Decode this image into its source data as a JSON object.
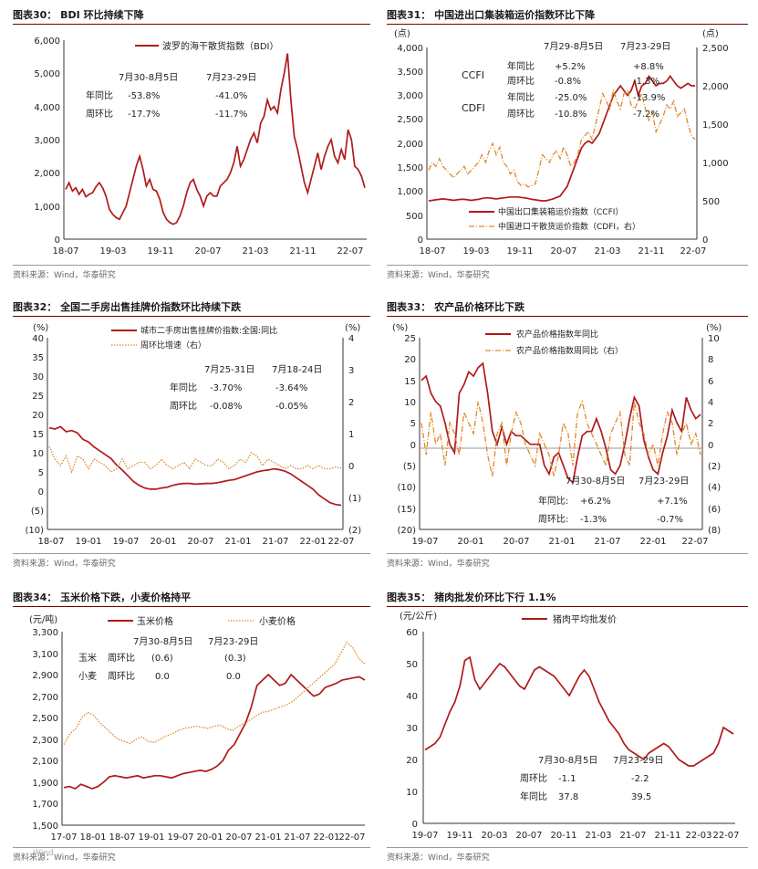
{
  "colors": {
    "primary": "#b01a1a",
    "secondary": "#e0892b",
    "axis": "#333333",
    "title_rule": "#7a0000",
    "source": "#666666"
  },
  "footer_note": "Wind",
  "chart_data": [
    {
      "id": "bdi",
      "type": "line",
      "title": "图表30： BDI 环比持续下降",
      "source": "资料来源：Wind，华泰研究",
      "left_unit": "",
      "y_ticks": [
        "6,000",
        "5,000",
        "4,000",
        "3,000",
        "2,000",
        "1,000",
        "0"
      ],
      "ylim": [
        0,
        6000
      ],
      "x_ticks": [
        "18-07",
        "19-03",
        "19-11",
        "20-07",
        "21-03",
        "21-11",
        "22-07"
      ],
      "x_range": [
        0,
        48
      ],
      "series": [
        {
          "name": "波罗的海干散货指数（BDI）",
          "style": "solid",
          "axis": "left",
          "values": [
            1500,
            1700,
            1450,
            1550,
            1350,
            1500,
            1280,
            1350,
            1400,
            1580,
            1700,
            1550,
            1300,
            900,
            750,
            650,
            600,
            800,
            1000,
            1400,
            1800,
            2200,
            2500,
            2100,
            1600,
            1800,
            1500,
            1450,
            1200,
            800,
            600,
            500,
            450,
            500,
            700,
            1000,
            1400,
            1700,
            1800,
            1500,
            1300,
            1000,
            1300,
            1400,
            1300,
            1300,
            1600,
            1700,
            1800,
            2000,
            2300,
            2800,
            2200,
            2400,
            2700,
            3000,
            3200,
            2900,
            3500,
            3700,
            4200,
            3900,
            4000,
            3800,
            4500,
            5000,
            5600,
            4200,
            3100,
            2700,
            2200,
            1700,
            1400,
            1800,
            2200,
            2600,
            2100,
            2500,
            2800,
            3000,
            2500,
            2300,
            2700,
            2400,
            3300,
            3000,
            2200,
            2100,
            1900,
            1550
          ]
        }
      ],
      "annotations": {
        "header": [
          "7月30-8月5日",
          "7月23-29日"
        ],
        "rows": [
          [
            "年同比",
            "-53.8%",
            "-41.0%"
          ],
          [
            "周环比",
            "-17.7%",
            "-11.7%"
          ]
        ]
      }
    },
    {
      "id": "ccfi",
      "type": "line",
      "title": "图表31： 中国进出口集装箱运价指数环比下降",
      "source": "资料来源：Wind，华泰研究",
      "left_unit": "(点)",
      "right_unit": "(点)",
      "y_ticks": [
        "4,000",
        "3,500",
        "3,000",
        "2,500",
        "2,000",
        "1,500",
        "1,000",
        "500",
        "0"
      ],
      "ylim": [
        0,
        4000
      ],
      "y2_ticks": [
        "2,500",
        "2,000",
        "1,500",
        "1,000",
        "500",
        "0"
      ],
      "y2lim": [
        0,
        2500
      ],
      "x_ticks": [
        "18-07",
        "19-03",
        "19-11",
        "20-07",
        "21-03",
        "21-11",
        "22-07"
      ],
      "x_range": [
        0,
        48
      ],
      "series": [
        {
          "name": "中国出口集装箱运价指数（CCFI）",
          "style": "solid",
          "axis": "left",
          "values": [
            800,
            810,
            820,
            830,
            840,
            830,
            820,
            810,
            820,
            830,
            830,
            820,
            810,
            820,
            830,
            850,
            860,
            860,
            850,
            840,
            850,
            860,
            870,
            880,
            880,
            880,
            870,
            860,
            850,
            830,
            820,
            810,
            800,
            800,
            820,
            840,
            870,
            900,
            1000,
            1100,
            1300,
            1500,
            1700,
            1900,
            2000,
            2050,
            2000,
            2100,
            2200,
            2400,
            2600,
            2800,
            3000,
            3100,
            3200,
            3100,
            3000,
            3100,
            3300,
            3000,
            3200,
            3250,
            3400,
            3300,
            3200,
            3250,
            3250,
            3300,
            3400,
            3300,
            3200,
            3150,
            3200,
            3250,
            3200,
            3200
          ]
        },
        {
          "name": "中国进口干散货运价指数（CDFI，右）",
          "style": "dashdot",
          "axis": "right",
          "values": [
            900,
            1000,
            950,
            1050,
            950,
            900,
            850,
            800,
            850,
            900,
            950,
            850,
            900,
            950,
            1000,
            1100,
            1000,
            1150,
            1250,
            1100,
            1200,
            1000,
            950,
            850,
            900,
            750,
            700,
            720,
            680,
            700,
            720,
            900,
            1100,
            1050,
            1000,
            1100,
            1150,
            1050,
            1200,
            1100,
            950,
            1000,
            1100,
            1300,
            1350,
            1400,
            1300,
            1500,
            1700,
            1900,
            1800,
            1700,
            1950,
            1800,
            1700,
            1900,
            1950,
            1750,
            1700,
            1800,
            1900,
            1700,
            1550,
            1650,
            1400,
            1500,
            1600,
            1750,
            1700,
            1800,
            1600,
            1650,
            1700,
            1500,
            1350,
            1300
          ]
        }
      ],
      "legend_labels": [
        "CCFI",
        "CDFI"
      ],
      "annotations": {
        "header": [
          "7月29-8月5日",
          "7月23-29日"
        ],
        "rows": [
          [
            "年同比",
            "+5.2%",
            "+8.8%"
          ],
          [
            "周环比",
            "-0.8%",
            "-1.3%"
          ],
          [
            "年同比",
            "-25.0%",
            "-13.9%"
          ],
          [
            "周环比",
            "-10.8%",
            "-7.2%"
          ]
        ]
      }
    },
    {
      "id": "house",
      "type": "line",
      "title": "图表32： 全国二手房出售挂牌价指数环比持续下跌",
      "source": "资料来源：Wind，华泰研究",
      "left_unit": "(%)",
      "right_unit": "(%)",
      "y_ticks": [
        "40",
        "35",
        "30",
        "25",
        "20",
        "15",
        "10",
        "5",
        "0",
        "(5)",
        "(10)"
      ],
      "ylim": [
        -10,
        40
      ],
      "y2_ticks": [
        "4",
        "3",
        "2",
        "1",
        "0",
        "(1)",
        "(2)"
      ],
      "y2lim": [
        -2,
        4
      ],
      "x_ticks": [
        "18-07",
        "19-01",
        "19-07",
        "20-01",
        "20-07",
        "21-01",
        "21-07",
        "22-01",
        "22-07"
      ],
      "x_range": [
        0,
        48
      ],
      "series": [
        {
          "name": "城市二手房出售挂牌价指数:全国:同比",
          "style": "solid",
          "axis": "left",
          "values": [
            16.5,
            16.2,
            16.8,
            15.5,
            15.8,
            15.2,
            13.5,
            12.8,
            11.5,
            10.5,
            9.5,
            8.5,
            6.8,
            5.5,
            4.0,
            2.5,
            1.5,
            0.8,
            0.5,
            0.5,
            0.8,
            1.0,
            1.5,
            1.8,
            2.0,
            2.0,
            1.8,
            1.9,
            2.0,
            2.0,
            2.2,
            2.5,
            2.8,
            3.0,
            3.5,
            4.0,
            4.5,
            5.0,
            5.3,
            5.5,
            5.8,
            5.6,
            5.2,
            4.5,
            3.5,
            2.5,
            1.5,
            0.5,
            -1.0,
            -2.0,
            -3.0,
            -3.5,
            -3.7
          ]
        },
        {
          "name": "周环比增速（右）",
          "style": "dotted",
          "axis": "right",
          "values": [
            0.6,
            0.2,
            0.0,
            0.3,
            -0.2,
            0.3,
            0.2,
            -0.1,
            0.2,
            0.1,
            0.0,
            -0.2,
            -0.1,
            0.2,
            -0.1,
            0.0,
            0.1,
            0.1,
            -0.1,
            0.0,
            0.2,
            0.0,
            -0.1,
            0.0,
            0.1,
            -0.1,
            0.2,
            0.1,
            0.0,
            0.0,
            0.2,
            0.1,
            -0.1,
            0.0,
            0.2,
            0.1,
            0.4,
            0.3,
            0.0,
            0.2,
            0.1,
            0.0,
            -0.1,
            0.0,
            -0.1,
            -0.1,
            0.0,
            -0.1,
            0.0,
            -0.1,
            -0.1,
            -0.05,
            -0.08
          ]
        }
      ],
      "annotations": {
        "header": [
          "7月25-31日",
          "7月18-24日"
        ],
        "rows": [
          [
            "年同比",
            "-3.70%",
            "-3.64%"
          ],
          [
            "周环比",
            "-0.08%",
            "-0.05%"
          ]
        ]
      }
    },
    {
      "id": "agri",
      "type": "line",
      "title": "图表33： 农产品价格环比下跌",
      "source": "资料来源：Wind，华泰研究",
      "left_unit": "(%)",
      "right_unit": "(%)",
      "y_ticks": [
        "25",
        "20",
        "15",
        "10",
        "5",
        "0",
        "(5)",
        "(10)",
        "(15)",
        "(20)"
      ],
      "ylim": [
        -20,
        25
      ],
      "y2_ticks": [
        "10",
        "8",
        "6",
        "4",
        "2",
        "0",
        "(2)",
        "(4)",
        "(6)",
        "(8)"
      ],
      "y2lim": [
        -8,
        10
      ],
      "x_ticks": [
        "19-07",
        "20-01",
        "20-07",
        "21-01",
        "21-07",
        "22-01",
        "22-07"
      ],
      "x_range": [
        0,
        36
      ],
      "series": [
        {
          "name": "农产品价格指数年同比",
          "style": "solid",
          "axis": "left",
          "values": [
            15,
            16,
            12,
            10,
            9,
            5,
            0,
            -2,
            12,
            14,
            17,
            16,
            18,
            19,
            12,
            3,
            0,
            4,
            0,
            3,
            2,
            2,
            1,
            0,
            0,
            0,
            -5,
            -7,
            -3,
            -2,
            -5,
            -8,
            -9,
            -3,
            2,
            3,
            3,
            6,
            3,
            -1,
            -6,
            -7,
            -5,
            0,
            6,
            11,
            9,
            1,
            -3,
            -6,
            -7,
            -2,
            2,
            8,
            5,
            3,
            11,
            8,
            6,
            7
          ]
        },
        {
          "name": "农产品价格指数周同比（右）",
          "style": "dashdot",
          "axis": "right",
          "values": [
            2,
            -1,
            3,
            0,
            1,
            -2,
            2,
            1,
            -1,
            3,
            2,
            1,
            4,
            2,
            -1,
            -3,
            1,
            2,
            -2,
            1,
            3,
            2,
            0,
            -1,
            -2,
            1,
            0,
            -1,
            -3,
            -1,
            2,
            1,
            -2,
            3,
            4,
            2,
            1,
            0,
            -1,
            -2,
            1,
            2,
            3,
            -1,
            -2,
            4,
            2,
            1,
            -1,
            0,
            -2,
            1,
            3,
            2,
            -1,
            1,
            2,
            0,
            1,
            -1
          ]
        }
      ],
      "annotations": {
        "header": [
          "7月30-8月5日",
          "7月23-29日"
        ],
        "rows": [
          [
            "年同比:",
            "+6.2%",
            "+7.1%"
          ],
          [
            "周环比:",
            "-1.3%",
            "-0.7%"
          ]
        ]
      }
    },
    {
      "id": "grain",
      "type": "line",
      "title": "图表34： 玉米价格下跌，小麦价格持平",
      "source": "资料来源：Wind，华泰研究",
      "left_unit": "(元/吨)",
      "y_ticks": [
        "3,300",
        "3,100",
        "2,900",
        "2,700",
        "2,500",
        "2,300",
        "2,100",
        "1,900",
        "1,700",
        "1,500"
      ],
      "ylim": [
        1500,
        3300
      ],
      "x_ticks": [
        "17-07",
        "18-01",
        "18-07",
        "19-01",
        "19-07",
        "20-01",
        "20-07",
        "21-01",
        "21-07",
        "22-01",
        "22-07"
      ],
      "x_range": [
        0,
        60
      ],
      "series": [
        {
          "name": "玉米价格",
          "style": "solid",
          "axis": "left",
          "values": [
            1850,
            1860,
            1840,
            1880,
            1860,
            1840,
            1860,
            1900,
            1950,
            1960,
            1950,
            1940,
            1950,
            1960,
            1940,
            1950,
            1960,
            1960,
            1950,
            1940,
            1960,
            1980,
            1990,
            2000,
            2010,
            2000,
            2020,
            2050,
            2100,
            2200,
            2250,
            2350,
            2450,
            2600,
            2800,
            2850,
            2900,
            2850,
            2800,
            2820,
            2900,
            2850,
            2800,
            2750,
            2700,
            2720,
            2780,
            2800,
            2820,
            2850,
            2860,
            2870,
            2880,
            2850
          ]
        },
        {
          "name": "小麦价格",
          "style": "dotted",
          "axis": "left",
          "values": [
            2250,
            2350,
            2400,
            2500,
            2550,
            2520,
            2450,
            2400,
            2350,
            2300,
            2280,
            2260,
            2300,
            2320,
            2280,
            2270,
            2300,
            2330,
            2350,
            2380,
            2400,
            2410,
            2420,
            2410,
            2400,
            2420,
            2430,
            2400,
            2380,
            2420,
            2450,
            2480,
            2520,
            2550,
            2560,
            2580,
            2600,
            2620,
            2650,
            2700,
            2750,
            2800,
            2850,
            2900,
            2950,
            3000,
            3100,
            3200,
            3150,
            3050,
            3000
          ]
        }
      ],
      "annotations": {
        "header": [
          "7月30-8月5日",
          "7月23-29日"
        ],
        "rows": [
          [
            "玉米",
            "周环比",
            "(0.6)",
            "(0.3)"
          ],
          [
            "小麦",
            "周环比",
            "0.0",
            "0.0"
          ]
        ]
      }
    },
    {
      "id": "pork",
      "type": "line",
      "title": "图表35： 猪肉批发价环比下行 1.1%",
      "source": "资料来源：Wind，华泰研究",
      "left_unit": "(元/公斤)",
      "y_ticks": [
        "60",
        "50",
        "40",
        "30",
        "20",
        "10",
        "0"
      ],
      "ylim": [
        0,
        60
      ],
      "x_ticks": [
        "19-07",
        "19-11",
        "20-03",
        "20-07",
        "20-11",
        "21-03",
        "21-07",
        "21-11",
        "22-03",
        "22-07"
      ],
      "x_range": [
        0,
        36
      ],
      "series": [
        {
          "name": "猪肉平均批发价",
          "style": "solid",
          "axis": "left",
          "values": [
            23,
            24,
            25,
            27,
            31,
            35,
            38,
            43,
            51,
            52,
            45,
            42,
            44,
            46,
            48,
            50,
            49,
            47,
            45,
            43,
            42,
            45,
            48,
            49,
            48,
            47,
            46,
            44,
            42,
            40,
            43,
            46,
            48,
            46,
            42,
            38,
            35,
            32,
            30,
            28,
            25,
            23,
            22,
            21,
            20,
            22,
            23,
            24,
            25,
            24,
            22,
            20,
            19,
            18,
            18,
            19,
            20,
            21,
            22,
            25,
            30,
            29,
            28
          ]
        }
      ],
      "annotations": {
        "header": [
          "7月30-8月5日",
          "7月23-29日"
        ],
        "rows": [
          [
            "周环比",
            "-1.1",
            "-2.2"
          ],
          [
            "年同比",
            "37.8",
            "39.5"
          ]
        ]
      }
    }
  ]
}
